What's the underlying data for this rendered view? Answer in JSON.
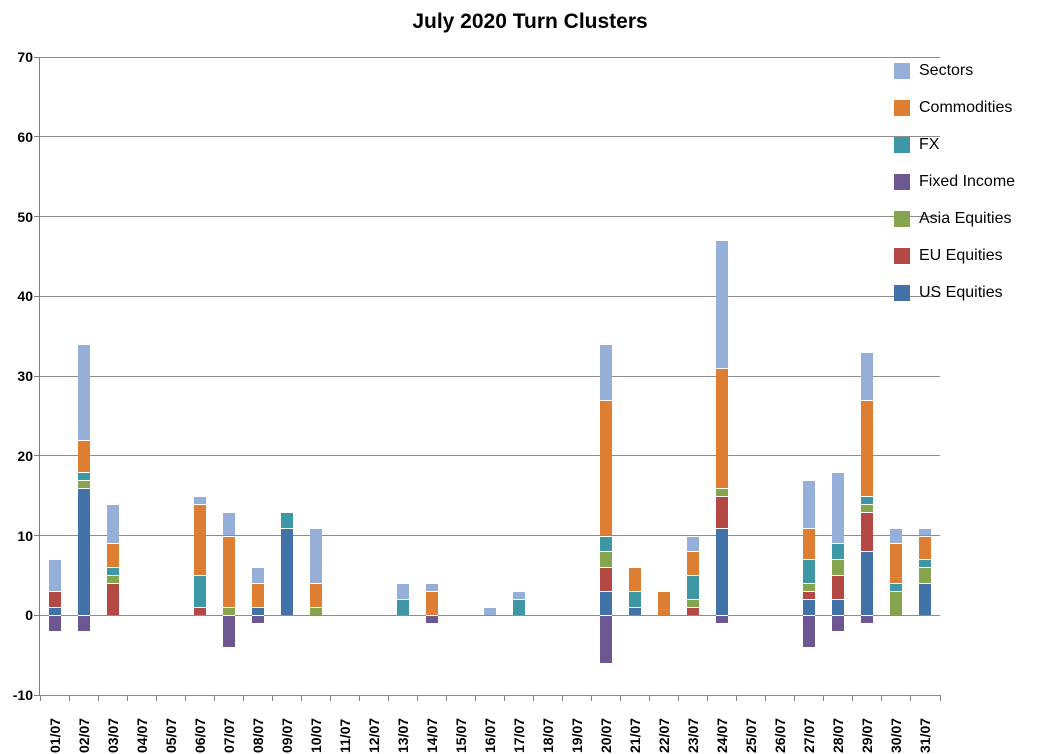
{
  "chart_data": {
    "type": "bar",
    "stacked": true,
    "title": "July 2020 Turn Clusters",
    "xlabel": "",
    "ylabel": "",
    "ylim": [
      -10,
      70
    ],
    "ytick_interval": 10,
    "yticks": [
      70,
      60,
      50,
      40,
      30,
      20,
      10,
      0,
      -10
    ],
    "grid": "horizontal",
    "background": "#FFFFFF",
    "grid_color": "#8C8C8C",
    "axis_color": "#808080",
    "text_color": "#000000",
    "categories": [
      "01/07",
      "02/07",
      "03/07",
      "04/07",
      "05/07",
      "06/07",
      "07/07",
      "08/07",
      "09/07",
      "10/07",
      "11/07",
      "12/07",
      "13/07",
      "14/07",
      "15/07",
      "16/07",
      "17/07",
      "18/07",
      "19/07",
      "20/07",
      "21/07",
      "22/07",
      "23/07",
      "24/07",
      "25/07",
      "26/07",
      "27/07",
      "28/07",
      "29/07",
      "30/07",
      "31/07"
    ],
    "series": [
      {
        "name": "US Equities",
        "color": "#4273A8",
        "values": [
          1,
          16,
          0,
          0,
          0,
          0,
          0,
          1,
          11,
          0,
          0,
          0,
          0,
          0,
          0,
          0,
          0,
          0,
          0,
          3,
          1,
          0,
          0,
          11,
          0,
          0,
          2,
          2,
          8,
          0,
          4
        ]
      },
      {
        "name": "EU Equities",
        "color": "#B34845",
        "values": [
          2,
          0,
          4,
          0,
          0,
          1,
          0,
          0,
          0,
          0,
          0,
          0,
          0,
          0,
          0,
          0,
          0,
          0,
          0,
          3,
          0,
          0,
          1,
          4,
          0,
          0,
          1,
          3,
          5,
          0,
          0
        ]
      },
      {
        "name": "Asia Equities",
        "color": "#85A44E",
        "values": [
          0,
          1,
          1,
          0,
          0,
          0,
          1,
          0,
          0,
          1,
          0,
          0,
          0,
          0,
          0,
          0,
          0,
          0,
          0,
          2,
          0,
          0,
          1,
          1,
          0,
          0,
          1,
          2,
          1,
          3,
          2
        ]
      },
      {
        "name": "Fixed Income",
        "color": "#6C5793",
        "values": [
          -2,
          -2,
          0,
          0,
          0,
          0,
          -4,
          -1,
          0,
          0,
          0,
          0,
          0,
          -1,
          0,
          0,
          0,
          0,
          0,
          -6,
          0,
          0,
          0,
          -1,
          0,
          0,
          -4,
          -2,
          -1,
          0,
          0
        ]
      },
      {
        "name": "FX",
        "color": "#3D97A5",
        "values": [
          0,
          1,
          1,
          0,
          0,
          4,
          0,
          0,
          2,
          0,
          0,
          0,
          2,
          0,
          0,
          0,
          2,
          0,
          0,
          2,
          2,
          0,
          3,
          0,
          0,
          0,
          3,
          2,
          1,
          1,
          1
        ]
      },
      {
        "name": "Commodities",
        "color": "#DE7E32",
        "values": [
          0,
          4,
          3,
          0,
          0,
          9,
          9,
          3,
          0,
          3,
          0,
          0,
          0,
          3,
          0,
          0,
          0,
          0,
          0,
          17,
          3,
          3,
          3,
          15,
          0,
          0,
          4,
          0,
          12,
          5,
          3
        ]
      },
      {
        "name": "Sectors",
        "color": "#95AFD8",
        "values": [
          4,
          12,
          5,
          0,
          0,
          1,
          3,
          2,
          0,
          7,
          0,
          0,
          2,
          1,
          0,
          1,
          1,
          0,
          0,
          7,
          0,
          0,
          2,
          16,
          0,
          0,
          6,
          9,
          6,
          2,
          1
        ]
      }
    ],
    "legend": {
      "position": "top-right",
      "entries_top_to_bottom": [
        "Sectors",
        "Commodities",
        "FX",
        "Fixed Income",
        "Asia Equities",
        "EU Equities",
        "US Equities"
      ]
    }
  }
}
